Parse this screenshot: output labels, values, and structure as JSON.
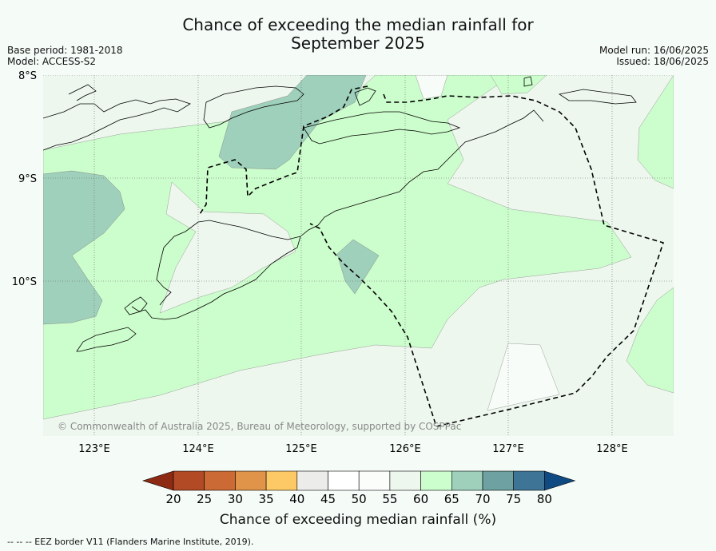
{
  "header": {
    "title_line1": "Chance of exceeding the median rainfall for",
    "title_line2": "September 2025",
    "base_period": "Base period: 1981-2018",
    "model": "Model: ACCESS-S2",
    "model_run": "Model run: 16/06/2025",
    "issued": "Issued: 18/06/2025"
  },
  "map": {
    "lat_labels": [
      "8°S",
      "9°S",
      "10°S"
    ],
    "lon_labels": [
      "123°E",
      "124°E",
      "125°E",
      "126°E",
      "127°E",
      "128°E"
    ],
    "copyright": "© Commonwealth of Australia 2025, Bureau of Meteorology, supported by COSPPac"
  },
  "legend": {
    "title": "Chance of exceeding median rainfall (%)",
    "ticks": [
      "20",
      "25",
      "30",
      "35",
      "40",
      "45",
      "50",
      "55",
      "60",
      "65",
      "70",
      "75",
      "80"
    ],
    "colors": {
      "below_20": "#8c2a13",
      "20_25": "#b34a26",
      "25_30": "#cc6a35",
      "30_35": "#e0944a",
      "35_40": "#fdc866",
      "40_45": "#ececea",
      "45_50": "#ffffff",
      "50_55": "#fbfdfb",
      "55_60": "#edf7ee",
      "60_65": "#ccfdcc",
      "65_70": "#9fd0bc",
      "70_75": "#6ea1a1",
      "75_80": "#3e7596",
      "above_80": "#0f4a83"
    }
  },
  "footnote": "--  --  -- EEZ border V11 (Flanders Marine Institute, 2019)."
}
